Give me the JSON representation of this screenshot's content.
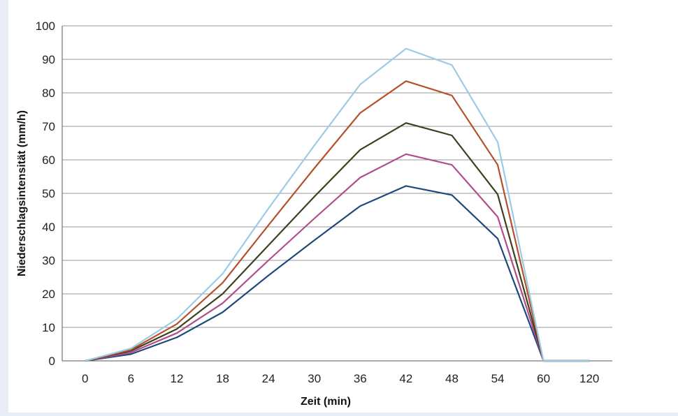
{
  "chart_data": {
    "type": "line",
    "xlabel": "Zeit (min)",
    "ylabel": "Niederschlagsintensität (mm/h)",
    "ylim": [
      0,
      100
    ],
    "yticks": [
      0,
      10,
      20,
      30,
      40,
      50,
      60,
      70,
      80,
      90,
      100
    ],
    "categories": [
      "0",
      "6",
      "12",
      "18",
      "24",
      "30",
      "36",
      "42",
      "48",
      "54",
      "60",
      "120"
    ],
    "grid": true,
    "series": [
      {
        "color": "#1f497d",
        "values": [
          0,
          2,
          7,
          14.5,
          25.5,
          36,
          46.2,
          52.2,
          49.5,
          36.5,
          0,
          0
        ]
      },
      {
        "color": "#b04e8b",
        "values": [
          0,
          2.5,
          8.3,
          17.2,
          30,
          42.5,
          54.7,
          61.7,
          58.5,
          43,
          0,
          0
        ]
      },
      {
        "color": "#3f3f1f",
        "values": [
          0,
          3,
          9.5,
          20,
          34.5,
          49,
          63,
          71,
          67.3,
          49.7,
          0,
          0
        ]
      },
      {
        "color": "#b5502a",
        "values": [
          0,
          3.3,
          11,
          23.3,
          40.5,
          57.5,
          74,
          83.5,
          79.2,
          58.5,
          0,
          0
        ]
      },
      {
        "color": "#9ccbe6",
        "values": [
          0,
          3.7,
          12.5,
          26,
          45.5,
          64.3,
          82.5,
          93.2,
          88.3,
          65.3,
          0,
          0
        ]
      }
    ]
  }
}
